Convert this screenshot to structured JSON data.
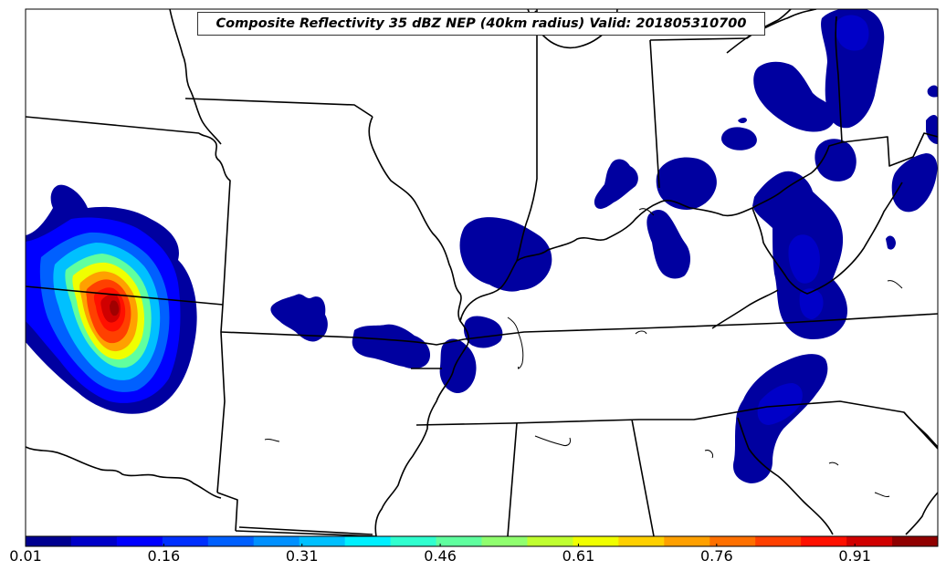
{
  "title": "Composite Reflectivity 35 dBZ NEP (40km radius) Valid: 201805310700",
  "colorbar": {
    "tick_labels": [
      "0.01",
      "0.16",
      "0.31",
      "0.46",
      "0.61",
      "0.76",
      "0.91"
    ],
    "colors": [
      "#00008f",
      "#0000c8",
      "#0000ff",
      "#0030ff",
      "#0060ff",
      "#0090ff",
      "#00c0ff",
      "#00f0ff",
      "#30ffcf",
      "#60ff9f",
      "#90ff6f",
      "#c0ff30",
      "#f0ff00",
      "#ffd000",
      "#ffa000",
      "#ff7000",
      "#ff4000",
      "#ff1000",
      "#d00000",
      "#8f0000"
    ]
  },
  "map": {
    "region": "Central United States",
    "field": "Neighborhood ensemble probability",
    "colors": {
      "deep_blue": "#0000a0",
      "blue": "#0000ff",
      "mid_blue": "#0040ff",
      "state_lines": "#000000"
    }
  }
}
